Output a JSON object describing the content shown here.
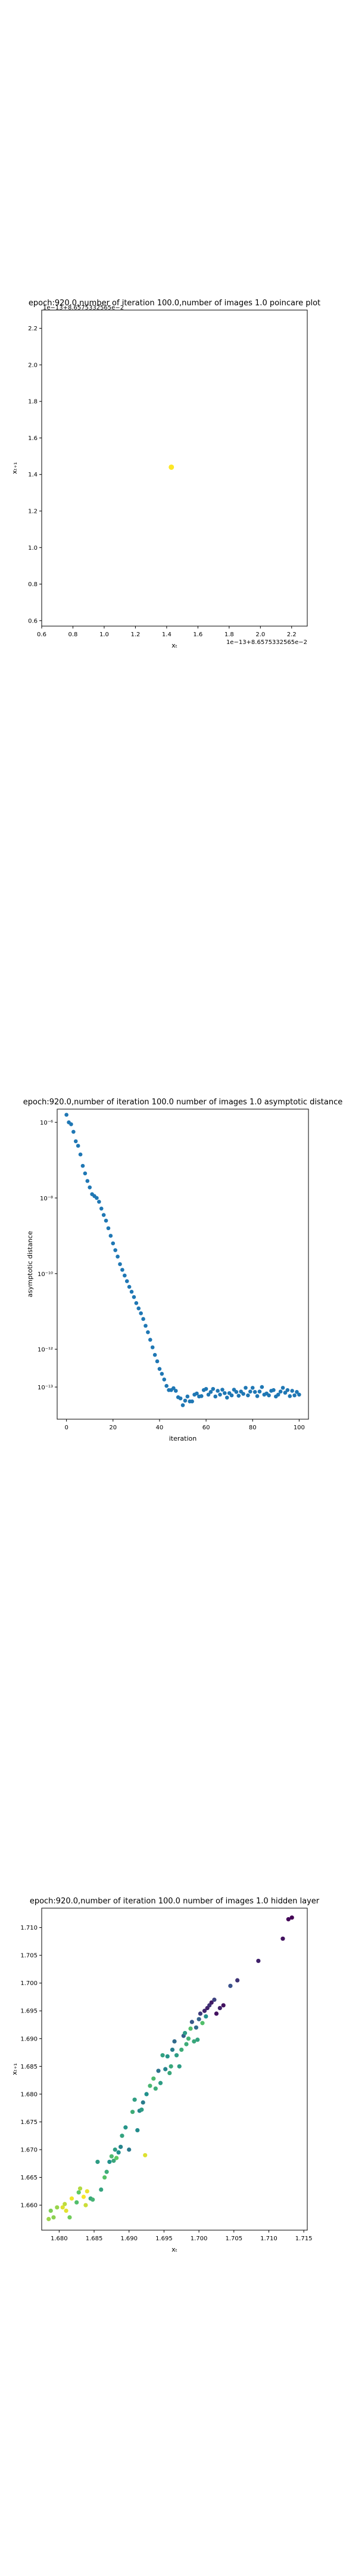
{
  "chart_data": [
    {
      "type": "scatter",
      "title": "epoch:920.0,number of iteration 100.0,number of images 1.0 poincare plot",
      "xlabel": "xₜ",
      "ylabel": "xₜ₊₁",
      "xlim": [
        0.6,
        2.3
      ],
      "ylim": [
        0.57,
        2.3
      ],
      "xticks": [
        "0.6",
        "0.8",
        "1.0",
        "1.2",
        "1.4",
        "1.6",
        "1.8",
        "2.0",
        "2.2"
      ],
      "yticks": [
        "0.6",
        "0.8",
        "1.0",
        "1.2",
        "1.4",
        "1.6",
        "1.8",
        "2.0",
        "2.2"
      ],
      "offset_x": "1e−13+8.6575332565e−2",
      "offset_y": "1e−13+8.6575332565e−2",
      "points": [
        {
          "x": 1.43,
          "y": 1.44
        }
      ],
      "color": "#fde725"
    },
    {
      "type": "scatter",
      "title": "epoch:920.0,number of iteration 100.0  number of images 1.0 asymptotic distance",
      "xlabel": "iteration",
      "ylabel": "asymptotic distance",
      "log_y": true,
      "xlim": [
        -4,
        104
      ],
      "ylim_exp": [
        -13.85,
        -5.65
      ],
      "xticks": [
        "0",
        "20",
        "40",
        "60",
        "80",
        "100"
      ],
      "yticks": [
        "10⁻⁶",
        "10⁻⁸",
        "10⁻¹⁰",
        "10⁻¹²",
        "10⁻¹³"
      ],
      "ytick_exps": [
        -6,
        -8,
        -10,
        -12,
        -13
      ],
      "color": "#1f77b4",
      "log10_values": [
        -5.8,
        -6.0,
        -6.05,
        -6.25,
        -6.5,
        -6.62,
        -6.85,
        -7.15,
        -7.35,
        -7.55,
        -7.72,
        -7.9,
        -7.95,
        -8.0,
        -8.1,
        -8.28,
        -8.45,
        -8.6,
        -8.8,
        -9.0,
        -9.2,
        -9.38,
        -9.55,
        -9.75,
        -9.9,
        -10.05,
        -10.2,
        -10.35,
        -10.48,
        -10.62,
        -10.78,
        -10.92,
        -11.05,
        -11.2,
        -11.38,
        -11.55,
        -11.75,
        -11.95,
        -12.15,
        -12.32,
        -12.52,
        -12.65,
        -12.8,
        -12.97,
        -13.08,
        -13.08,
        -13.03,
        -13.1,
        -13.27,
        -13.3,
        -13.48,
        -13.36,
        -13.25,
        -13.38,
        -13.38,
        -13.2,
        -13.17,
        -13.25,
        -13.24,
        -13.08,
        -13.05,
        -13.2,
        -13.13,
        -13.05,
        -13.25,
        -13.1,
        -13.2,
        -13.07,
        -13.16,
        -13.28,
        -13.16,
        -13.22,
        -13.07,
        -13.13,
        -13.23,
        -13.12,
        -13.18,
        -13.02,
        -13.22,
        -13.12,
        -13.02,
        -13.13,
        -13.24,
        -13.12,
        -13.0,
        -13.2,
        -13.17,
        -13.22,
        -13.1,
        -13.08,
        -13.25,
        -13.2,
        -13.12,
        -13.02,
        -13.15,
        -13.08,
        -13.24,
        -13.1,
        -13.22,
        -13.13,
        -13.2
      ]
    },
    {
      "type": "scatter",
      "title": "epoch:920.0,number of iteration 100.0  number of images 1.0 hidden layer",
      "xlabel": "xₜ",
      "ylabel": "xₜ₊₁",
      "xlim": [
        1.6775,
        1.7155
      ],
      "ylim": [
        1.6555,
        1.7135
      ],
      "xticks": [
        "1.680",
        "1.685",
        "1.690",
        "1.695",
        "1.700",
        "1.705",
        "1.710",
        "1.715"
      ],
      "yticks": [
        "1.660",
        "1.665",
        "1.670",
        "1.675",
        "1.680",
        "1.685",
        "1.690",
        "1.695",
        "1.700",
        "1.705",
        "1.710"
      ],
      "colormap": "viridis",
      "points": [
        [
          1.6785,
          1.6575,
          0.85
        ],
        [
          1.6792,
          1.6578,
          0.82
        ],
        [
          1.6788,
          1.659,
          0.8
        ],
        [
          1.6797,
          1.6596,
          0.84
        ],
        [
          1.6808,
          1.6602,
          0.9
        ],
        [
          1.6805,
          1.6596,
          0.95
        ],
        [
          1.681,
          1.659,
          0.96
        ],
        [
          1.6815,
          1.6578,
          0.78
        ],
        [
          1.6818,
          1.6612,
          0.98
        ],
        [
          1.6825,
          1.6605,
          0.7
        ],
        [
          1.6828,
          1.6623,
          0.75
        ],
        [
          1.683,
          1.663,
          0.88
        ],
        [
          1.6835,
          1.6615,
          0.99
        ],
        [
          1.6838,
          1.66,
          0.92
        ],
        [
          1.684,
          1.6625,
          0.97
        ],
        [
          1.6845,
          1.6612,
          0.6
        ],
        [
          1.6848,
          1.661,
          0.65
        ],
        [
          1.6855,
          1.6678,
          0.55
        ],
        [
          1.686,
          1.6628,
          0.58
        ],
        [
          1.6865,
          1.665,
          0.72
        ],
        [
          1.6868,
          1.666,
          0.62
        ],
        [
          1.6872,
          1.6678,
          0.5
        ],
        [
          1.6875,
          1.6688,
          0.68
        ],
        [
          1.6878,
          1.668,
          0.6
        ],
        [
          1.688,
          1.67,
          0.55
        ],
        [
          1.6882,
          1.6685,
          0.75
        ],
        [
          1.6885,
          1.6695,
          0.5
        ],
        [
          1.6888,
          1.6705,
          0.45
        ],
        [
          1.689,
          1.6725,
          0.58
        ],
        [
          1.6895,
          1.674,
          0.52
        ],
        [
          1.69,
          1.67,
          0.4
        ],
        [
          1.6905,
          1.6768,
          0.62
        ],
        [
          1.6908,
          1.679,
          0.56
        ],
        [
          1.6912,
          1.6735,
          0.48
        ],
        [
          1.6915,
          1.677,
          0.45
        ],
        [
          1.6918,
          1.6772,
          0.55
        ],
        [
          1.692,
          1.6785,
          0.42
        ],
        [
          1.6923,
          1.669,
          0.95
        ],
        [
          1.6925,
          1.68,
          0.5
        ],
        [
          1.693,
          1.6815,
          0.66
        ],
        [
          1.6935,
          1.6828,
          0.68
        ],
        [
          1.6938,
          1.681,
          0.62
        ],
        [
          1.6942,
          1.6842,
          0.38
        ],
        [
          1.6945,
          1.682,
          0.55
        ],
        [
          1.6948,
          1.687,
          0.57
        ],
        [
          1.6952,
          1.6845,
          0.45
        ],
        [
          1.6955,
          1.6868,
          0.52
        ],
        [
          1.6958,
          1.6838,
          0.6
        ],
        [
          1.696,
          1.685,
          0.6
        ],
        [
          1.6962,
          1.688,
          0.42
        ],
        [
          1.6965,
          1.6895,
          0.35
        ],
        [
          1.6968,
          1.687,
          0.55
        ],
        [
          1.6972,
          1.685,
          0.55
        ],
        [
          1.6975,
          1.688,
          0.62
        ],
        [
          1.6978,
          1.6905,
          0.3
        ],
        [
          1.698,
          1.691,
          0.55
        ],
        [
          1.6982,
          1.689,
          0.62
        ],
        [
          1.6985,
          1.69,
          0.65
        ],
        [
          1.6988,
          1.6918,
          0.7
        ],
        [
          1.699,
          1.693,
          0.28
        ],
        [
          1.6993,
          1.6895,
          0.6
        ],
        [
          1.6996,
          1.692,
          0.35
        ],
        [
          1.6998,
          1.6898,
          0.58
        ],
        [
          1.7,
          1.6935,
          0.32
        ],
        [
          1.7002,
          1.6945,
          0.18
        ],
        [
          1.7005,
          1.6928,
          0.7
        ],
        [
          1.7008,
          1.695,
          0.12
        ],
        [
          1.701,
          1.694,
          0.5
        ],
        [
          1.7012,
          1.6955,
          0.1
        ],
        [
          1.7015,
          1.696,
          0.15
        ],
        [
          1.7018,
          1.6965,
          0.08
        ],
        [
          1.7022,
          1.697,
          0.2
        ],
        [
          1.7025,
          1.6945,
          0.05
        ],
        [
          1.703,
          1.6955,
          0.1
        ],
        [
          1.7035,
          1.696,
          0.05
        ],
        [
          1.7045,
          1.6995,
          0.25
        ],
        [
          1.7055,
          1.7005,
          0.15
        ],
        [
          1.7085,
          1.704,
          0.1
        ],
        [
          1.712,
          1.708,
          0.05
        ],
        [
          1.7128,
          1.7115,
          0.02
        ],
        [
          1.7133,
          1.7118,
          0.0
        ]
      ]
    }
  ]
}
